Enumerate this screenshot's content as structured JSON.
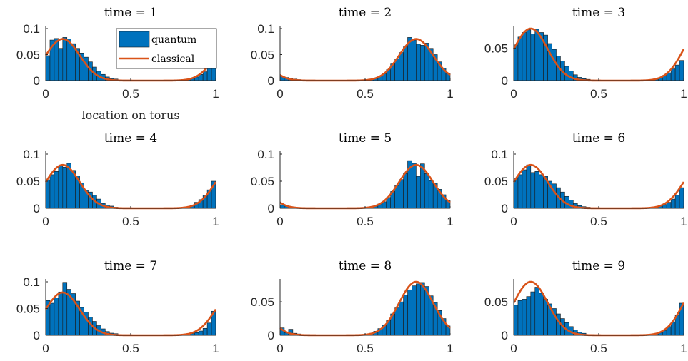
{
  "figure": {
    "xlabel": "location on torus",
    "legend": {
      "placement": "top-right",
      "entries": [
        "quantum",
        "classical"
      ]
    }
  },
  "colors": {
    "quantum": "#0072BD",
    "classical": "#D95319"
  },
  "chart_data": [
    {
      "type": "bar",
      "title": "time = 1",
      "xlabel": "location on torus",
      "xlim": [
        0,
        1
      ],
      "ylim": [
        0,
        0.1
      ],
      "xticks": [
        "0",
        "0.5",
        "1"
      ],
      "yticks": [
        "0",
        "0.05",
        "0.1"
      ],
      "legend": [
        "quantum",
        "classical"
      ],
      "series": [
        {
          "name": "quantum",
          "type": "bar",
          "x_start": 0,
          "bin_width": 0.025,
          "values": [
            0.048,
            0.078,
            0.081,
            0.062,
            0.083,
            0.08,
            0.071,
            0.062,
            0.053,
            0.045,
            0.036,
            0.026,
            0.018,
            0.012,
            0.007,
            0.004,
            0.003,
            0.001,
            0.001,
            0,
            0,
            0,
            0,
            0,
            0,
            0,
            0,
            0,
            0,
            0,
            0,
            0.001,
            0.001,
            0.002,
            0.004,
            0.007,
            0.012,
            0.017,
            0.03,
            0.044
          ]
        },
        {
          "name": "classical",
          "type": "line",
          "mu": 0.1
        }
      ]
    },
    {
      "type": "bar",
      "title": "time = 2",
      "xlim": [
        0,
        1
      ],
      "ylim": [
        0,
        0.1
      ],
      "xticks": [
        "0",
        "0.5",
        "1"
      ],
      "yticks": [
        "0",
        "0.05",
        "0.1"
      ],
      "series": [
        {
          "name": "quantum",
          "type": "bar",
          "x_start": 0,
          "bin_width": 0.025,
          "values": [
            0.009,
            0.006,
            0.004,
            0.003,
            0.002,
            0.001,
            0.001,
            0,
            0,
            0,
            0,
            0,
            0,
            0,
            0,
            0,
            0,
            0,
            0,
            0.001,
            0.001,
            0.003,
            0.005,
            0.008,
            0.013,
            0.021,
            0.032,
            0.042,
            0.054,
            0.065,
            0.083,
            0.078,
            0.07,
            0.068,
            0.072,
            0.062,
            0.05,
            0.036,
            0.024,
            0.014
          ]
        },
        {
          "name": "classical",
          "type": "line",
          "mu": 0.8
        }
      ]
    },
    {
      "type": "bar",
      "title": "time = 3",
      "xlim": [
        0,
        1
      ],
      "ylim": [
        0,
        0.08
      ],
      "xticks": [
        "0",
        "0.5",
        "1"
      ],
      "yticks": [
        "0",
        "0.05"
      ],
      "series": [
        {
          "name": "quantum",
          "type": "bar",
          "x_start": 0,
          "bin_width": 0.025,
          "values": [
            0.055,
            0.067,
            0.074,
            0.078,
            0.072,
            0.079,
            0.074,
            0.07,
            0.057,
            0.048,
            0.038,
            0.03,
            0.022,
            0.015,
            0.009,
            0.005,
            0.003,
            0.002,
            0.001,
            0,
            0,
            0,
            0,
            0,
            0,
            0,
            0,
            0,
            0,
            0,
            0,
            0,
            0.001,
            0.002,
            0.004,
            0.008,
            0.012,
            0.018,
            0.024,
            0.031
          ]
        },
        {
          "name": "classical",
          "type": "line",
          "mu": 0.1
        }
      ]
    },
    {
      "type": "bar",
      "title": "time = 4",
      "xlim": [
        0,
        1
      ],
      "ylim": [
        0,
        0.1
      ],
      "xticks": [
        "0",
        "0.5",
        "1"
      ],
      "yticks": [
        "0",
        "0.05",
        "0.1"
      ],
      "series": [
        {
          "name": "quantum",
          "type": "bar",
          "x_start": 0,
          "bin_width": 0.025,
          "values": [
            0.052,
            0.062,
            0.068,
            0.078,
            0.076,
            0.083,
            0.07,
            0.06,
            0.047,
            0.033,
            0.03,
            0.024,
            0.017,
            0.009,
            0.006,
            0.004,
            0.002,
            0.001,
            0,
            0,
            0,
            0,
            0,
            0,
            0,
            0,
            0,
            0,
            0,
            0,
            0,
            0,
            0.001,
            0.002,
            0.006,
            0.011,
            0.016,
            0.024,
            0.034,
            0.05
          ]
        },
        {
          "name": "classical",
          "type": "line",
          "mu": 0.1
        }
      ]
    },
    {
      "type": "bar",
      "title": "time = 5",
      "xlim": [
        0,
        1
      ],
      "ylim": [
        0,
        0.1
      ],
      "xticks": [
        "0",
        "0.5",
        "1"
      ],
      "yticks": [
        "0",
        "0.05",
        "0.1"
      ],
      "series": [
        {
          "name": "quantum",
          "type": "bar",
          "x_start": 0,
          "bin_width": 0.025,
          "values": [
            0.006,
            0.004,
            0.003,
            0.002,
            0.001,
            0.001,
            0,
            0,
            0,
            0,
            0,
            0,
            0,
            0,
            0,
            0,
            0,
            0,
            0,
            0.001,
            0.001,
            0.003,
            0.004,
            0.008,
            0.012,
            0.02,
            0.031,
            0.042,
            0.053,
            0.064,
            0.088,
            0.083,
            0.059,
            0.082,
            0.064,
            0.051,
            0.046,
            0.035,
            0.025,
            0.015
          ]
        },
        {
          "name": "classical",
          "type": "line",
          "mu": 0.8
        }
      ]
    },
    {
      "type": "bar",
      "title": "time = 6",
      "xlim": [
        0,
        1
      ],
      "ylim": [
        0,
        0.1
      ],
      "xticks": [
        "0",
        "0.5",
        "1"
      ],
      "yticks": [
        "0",
        "0.05",
        "0.1"
      ],
      "series": [
        {
          "name": "quantum",
          "type": "bar",
          "x_start": 0,
          "bin_width": 0.025,
          "values": [
            0.056,
            0.062,
            0.071,
            0.08,
            0.066,
            0.068,
            0.062,
            0.059,
            0.05,
            0.045,
            0.038,
            0.03,
            0.022,
            0.015,
            0.009,
            0.005,
            0.003,
            0.002,
            0.001,
            0,
            0,
            0,
            0,
            0,
            0,
            0,
            0,
            0,
            0,
            0,
            0,
            0,
            0.001,
            0.002,
            0.004,
            0.007,
            0.011,
            0.017,
            0.024,
            0.038
          ]
        },
        {
          "name": "classical",
          "type": "line",
          "mu": 0.1
        }
      ]
    },
    {
      "type": "bar",
      "title": "time = 7",
      "xlim": [
        0,
        1
      ],
      "ylim": [
        0,
        0.1
      ],
      "xticks": [
        "0",
        "0.5",
        "1"
      ],
      "yticks": [
        "0",
        "0.05",
        "0.1"
      ],
      "series": [
        {
          "name": "quantum",
          "type": "bar",
          "x_start": 0,
          "bin_width": 0.025,
          "values": [
            0.065,
            0.06,
            0.07,
            0.081,
            0.099,
            0.086,
            0.078,
            0.064,
            0.052,
            0.043,
            0.034,
            0.026,
            0.018,
            0.012,
            0.007,
            0.004,
            0.003,
            0.001,
            0.001,
            0,
            0,
            0,
            0,
            0,
            0,
            0,
            0,
            0,
            0,
            0,
            0,
            0,
            0.001,
            0.001,
            0.003,
            0.005,
            0.008,
            0.013,
            0.023,
            0.045
          ]
        },
        {
          "name": "classical",
          "type": "line",
          "mu": 0.1
        }
      ]
    },
    {
      "type": "bar",
      "title": "time = 8",
      "xlim": [
        0,
        1
      ],
      "ylim": [
        0,
        0.08
      ],
      "xticks": [
        "0",
        "0.5",
        "1"
      ],
      "yticks": [
        "0",
        "0.05"
      ],
      "series": [
        {
          "name": "quantum",
          "type": "bar",
          "x_start": 0,
          "bin_width": 0.025,
          "values": [
            0.011,
            0.004,
            0.009,
            0.003,
            0.002,
            0.001,
            0.001,
            0,
            0,
            0,
            0,
            0,
            0,
            0,
            0,
            0,
            0,
            0,
            0,
            0.001,
            0.001,
            0.003,
            0.006,
            0.01,
            0.015,
            0.022,
            0.032,
            0.041,
            0.05,
            0.06,
            0.068,
            0.074,
            0.077,
            0.079,
            0.073,
            0.059,
            0.049,
            0.037,
            0.025,
            0.014
          ]
        },
        {
          "name": "classical",
          "type": "line",
          "mu": 0.8
        }
      ]
    },
    {
      "type": "bar",
      "title": "time = 9",
      "xlim": [
        0,
        1
      ],
      "ylim": [
        0,
        0.08
      ],
      "xticks": [
        "0",
        "0.5",
        "1"
      ],
      "yticks": [
        "0",
        "0.05"
      ],
      "series": [
        {
          "name": "quantum",
          "type": "bar",
          "x_start": 0,
          "bin_width": 0.025,
          "values": [
            0.045,
            0.052,
            0.054,
            0.058,
            0.065,
            0.072,
            0.063,
            0.054,
            0.047,
            0.04,
            0.032,
            0.025,
            0.019,
            0.013,
            0.008,
            0.005,
            0.003,
            0.001,
            0.001,
            0,
            0,
            0,
            0,
            0,
            0,
            0,
            0,
            0,
            0,
            0,
            0,
            0,
            0.001,
            0.002,
            0.004,
            0.007,
            0.013,
            0.02,
            0.03,
            0.048
          ]
        },
        {
          "name": "classical",
          "type": "line",
          "mu": 0.1
        }
      ]
    }
  ]
}
